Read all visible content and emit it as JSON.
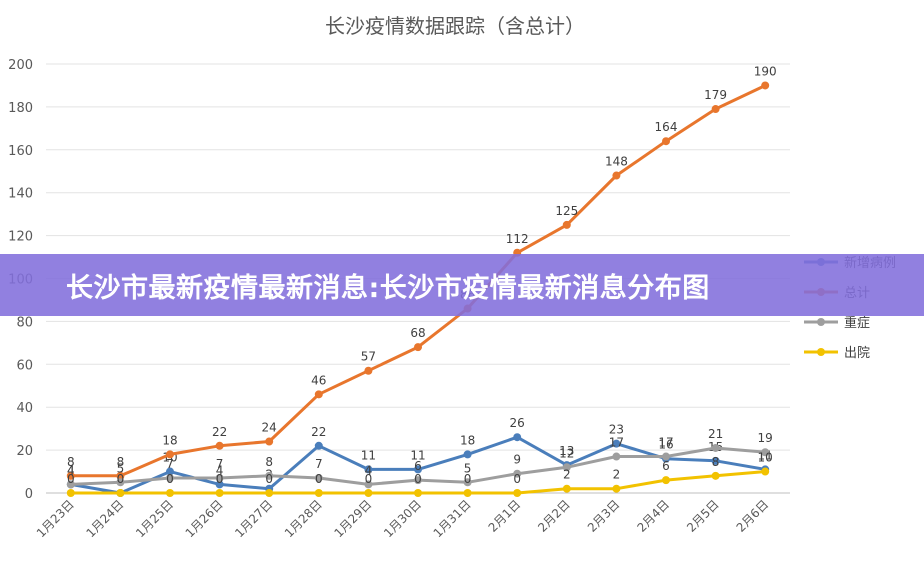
{
  "banner": {
    "text": "长沙市最新疫情最新消息:长沙市疫情最新消息分布图"
  },
  "chart_data": {
    "type": "line",
    "title": "长沙疫情数据跟踪（含总计）",
    "xlabel": "",
    "ylabel": "",
    "ylim": [
      0,
      200
    ],
    "yticks": [
      0,
      20,
      40,
      60,
      80,
      100,
      120,
      140,
      160,
      180,
      200
    ],
    "grid": true,
    "legend_position": "right",
    "categories": [
      "1月23日",
      "1月24日",
      "1月25日",
      "1月26日",
      "1月27日",
      "1月28日",
      "1月29日",
      "1月30日",
      "1月31日",
      "2月1日",
      "2月2日",
      "2月3日",
      "2月4日",
      "2月5日",
      "2月6日"
    ],
    "series": [
      {
        "name": "新增病例",
        "color": "#4A7EBB",
        "values": [
          4,
          0,
          10,
          4,
          2,
          22,
          11,
          11,
          18,
          26,
          13,
          23,
          16,
          15,
          11
        ]
      },
      {
        "name": "总计",
        "color": "#E8762D",
        "values": [
          8,
          8,
          18,
          22,
          24,
          46,
          57,
          68,
          86,
          112,
          125,
          148,
          164,
          179,
          190
        ]
      },
      {
        "name": "重症",
        "color": "#9E9E9E",
        "values": [
          4,
          5,
          7,
          7,
          8,
          7,
          4,
          6,
          5,
          9,
          12,
          17,
          17,
          21,
          19
        ]
      },
      {
        "name": "出院",
        "color": "#F2C200",
        "values": [
          0,
          0,
          0,
          0,
          0,
          0,
          0,
          0,
          0,
          0,
          2,
          2,
          6,
          8,
          10
        ]
      }
    ]
  }
}
